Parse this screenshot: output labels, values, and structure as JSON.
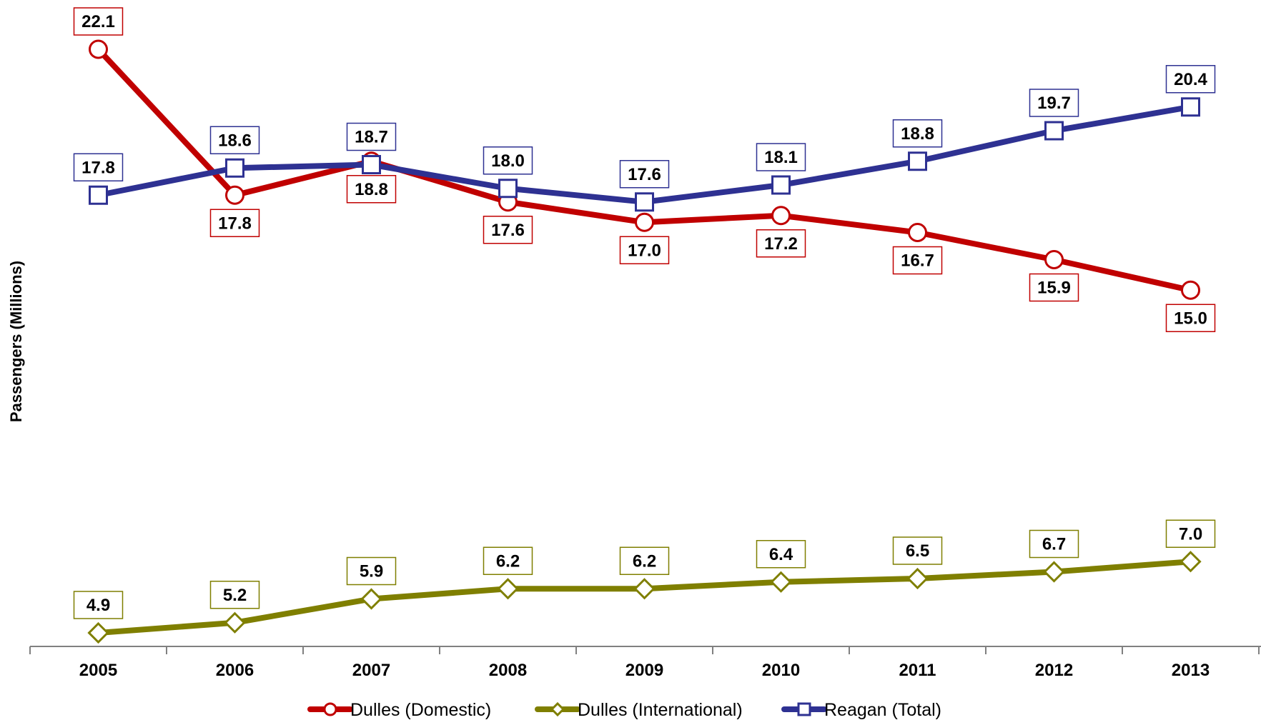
{
  "chart_data": {
    "type": "line",
    "title": "",
    "xlabel": "",
    "ylabel": "Passengers (Millions)",
    "ylim": [
      4,
      22.5
    ],
    "grid": false,
    "legend_position": "bottom",
    "categories": [
      "2005",
      "2006",
      "2007",
      "2008",
      "2009",
      "2010",
      "2011",
      "2012",
      "2013"
    ],
    "series": [
      {
        "name": "Dulles (Domestic)",
        "color": "#c00000",
        "marker": "circle",
        "values": [
          22.1,
          17.8,
          18.8,
          17.6,
          17.0,
          17.2,
          16.7,
          15.9,
          15.0
        ],
        "labels": [
          "22.1",
          "17.8",
          "18.8",
          "17.6",
          "17.0",
          "17.2",
          "16.7",
          "15.9",
          "15.0"
        ],
        "label_side": [
          "above",
          "below",
          "below",
          "below",
          "below",
          "below",
          "below",
          "below",
          "below"
        ]
      },
      {
        "name": "Dulles (International)",
        "color": "#7f7f00",
        "marker": "diamond",
        "values": [
          4.9,
          5.2,
          5.9,
          6.2,
          6.2,
          6.4,
          6.5,
          6.7,
          7.0
        ],
        "labels": [
          "4.9",
          "5.2",
          "5.9",
          "6.2",
          "6.2",
          "6.4",
          "6.5",
          "6.7",
          "7.0"
        ],
        "label_side": [
          "above",
          "above",
          "above",
          "above",
          "above",
          "above",
          "above",
          "above",
          "above"
        ]
      },
      {
        "name": "Reagan (Total)",
        "color": "#2e3192",
        "marker": "square",
        "values": [
          17.8,
          18.6,
          18.7,
          18.0,
          17.6,
          18.1,
          18.8,
          19.7,
          20.4
        ],
        "labels": [
          "17.8",
          "18.6",
          "18.7",
          "18.0",
          "17.6",
          "18.1",
          "18.8",
          "19.7",
          "20.4"
        ],
        "label_side": [
          "above",
          "above",
          "above",
          "above",
          "above",
          "above",
          "above",
          "above",
          "above"
        ]
      }
    ]
  }
}
